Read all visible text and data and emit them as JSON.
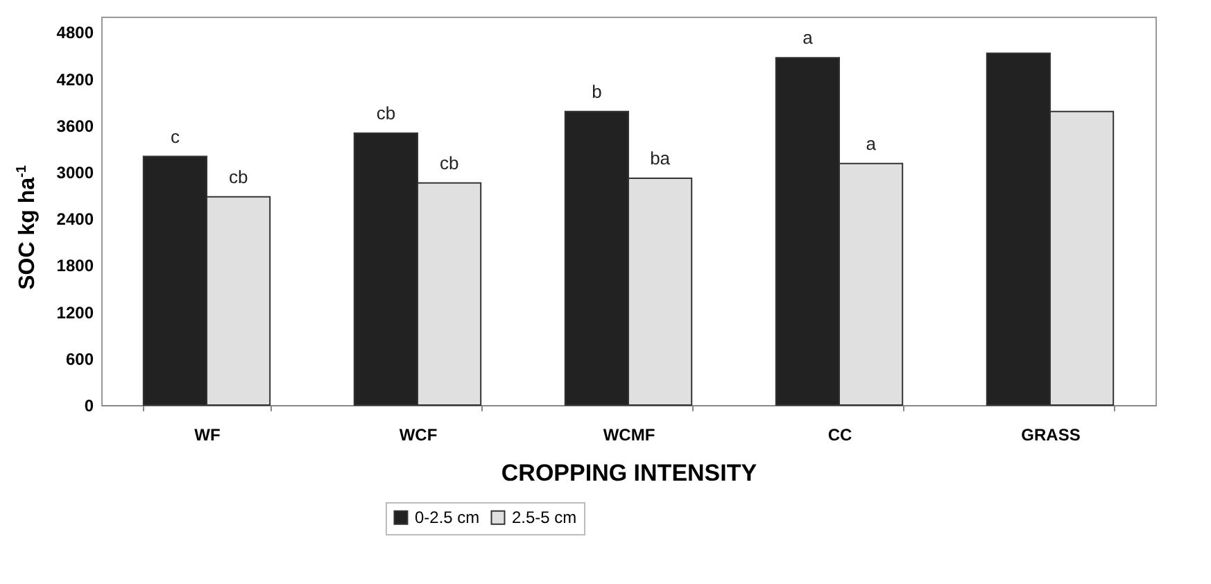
{
  "chart_data": {
    "type": "bar",
    "xlabel": "CROPPING INTENSITY",
    "ylabel": "SOC kg ha$^{-1}$",
    "categories": [
      "WF",
      "WCF",
      "WCMF",
      "CC",
      "GRASS"
    ],
    "series": [
      {
        "name": "0-2.5 cm",
        "color": "#222222",
        "values": [
          3200,
          3500,
          3780,
          4470,
          4530
        ],
        "value_labels": [
          "c",
          "cb",
          "b",
          "a",
          null
        ]
      },
      {
        "name": "2.5-5 cm",
        "color": "#e0e0e0",
        "values": [
          2680,
          2860,
          2920,
          3110,
          3780
        ],
        "value_labels": [
          "cb",
          "cb",
          "ba",
          "a",
          null
        ]
      }
    ],
    "ylim": [
      0,
      5000
    ],
    "yticks": [
      0,
      600,
      1200,
      1800,
      2400,
      3000,
      3600,
      4200,
      4800
    ],
    "grid": false,
    "legend": "bottom"
  }
}
